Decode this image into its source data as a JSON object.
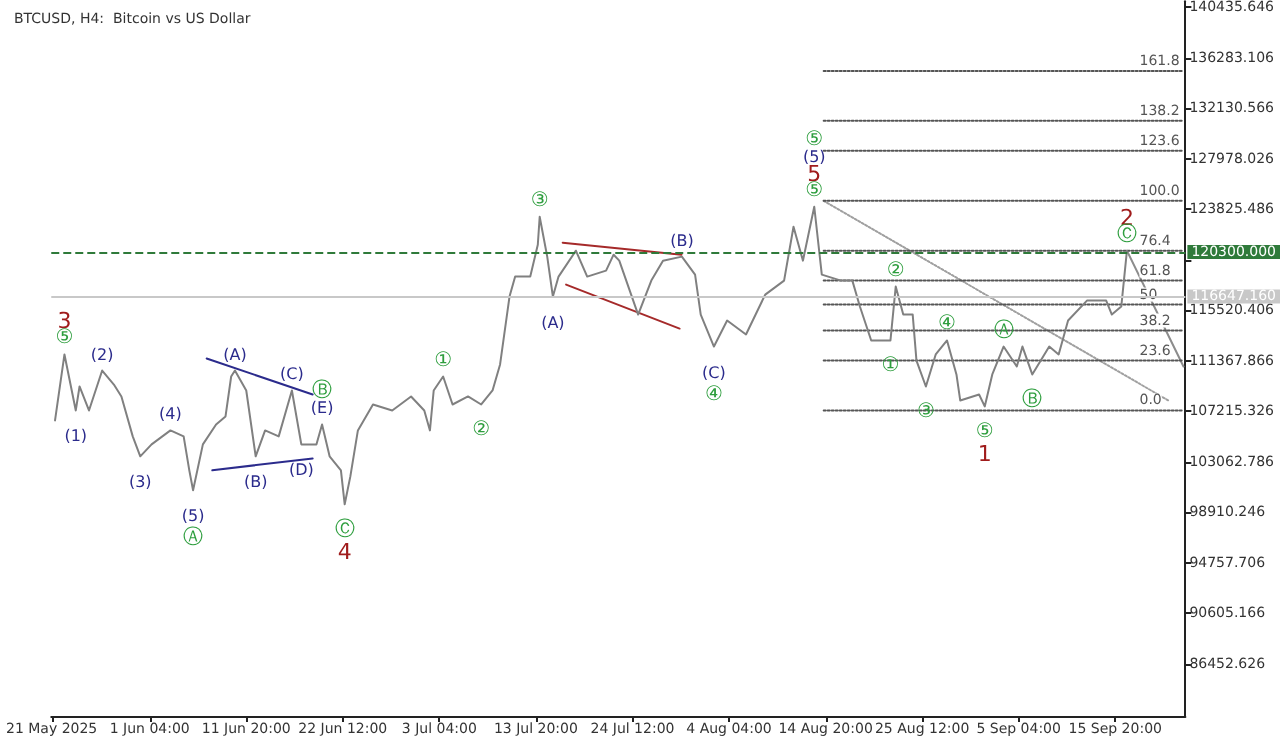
{
  "chart_data": {
    "type": "line",
    "title": "BTCUSD, H4:  Bitcoin vs US Dollar",
    "marker": "none",
    "xlim": [
      "2025-05-21T07:00",
      "2025-09-23T14:00"
    ],
    "xticks": [
      {
        "value": "2025-05-21T08:00",
        "label": "21 May 2025"
      },
      {
        "value": "2025-06-01T04:00",
        "label": "1 Jun 04:00"
      },
      {
        "value": "2025-06-11T20:00",
        "label": "11 Jun 20:00"
      },
      {
        "value": "2025-06-22T12:00",
        "label": "22 Jun 12:00"
      },
      {
        "value": "2025-07-03T04:00",
        "label": "3 Jul 04:00"
      },
      {
        "value": "2025-07-13T20:00",
        "label": "13 Jul 20:00"
      },
      {
        "value": "2025-07-24T12:00",
        "label": "24 Jul 12:00"
      },
      {
        "value": "2025-08-04T04:00",
        "label": "4 Aug 04:00"
      },
      {
        "value": "2025-08-14T20:00",
        "label": "14 Aug 20:00"
      },
      {
        "value": "2025-08-25T12:00",
        "label": "25 Aug 12:00"
      },
      {
        "value": "2025-09-05T04:00",
        "label": "5 Sep 04:00"
      },
      {
        "value": "2025-09-15T20:00",
        "label": "15 Sep 20:00"
      }
    ],
    "ylim": [
      82170,
      140900
    ],
    "yticks": [
      86452.626,
      90605.166,
      94757.706,
      98910.246,
      103062.786,
      107215.326,
      111367.866,
      115520.406,
      {
        "value": 119672.946,
        "label": null
      },
      123825.486,
      127978.026,
      132130.566,
      136283.106,
      140435.646
    ],
    "x": [
      "2025-05-21T17:00",
      "2025-05-22T18:00",
      "2025-05-24T00:00",
      "2025-05-24T10:00",
      "2025-05-25T11:00",
      "2025-05-26T22:00",
      "2025-05-28T05:00",
      "2025-05-29T01:00",
      "2025-05-30T07:00",
      "2025-05-31T03:00",
      "2025-06-01T09:00",
      "2025-06-03T11:00",
      "2025-06-04T22:00",
      "2025-06-05T13:00",
      "2025-06-05T23:00",
      "2025-06-07T01:00",
      "2025-06-08T12:00",
      "2025-06-09T13:00",
      "2025-06-10T04:00",
      "2025-06-10T14:00",
      "2025-06-11T20:00",
      "2025-06-12T21:00",
      "2025-06-13T22:00",
      "2025-06-15T10:00",
      "2025-06-16T21:00",
      "2025-06-17T22:00",
      "2025-06-19T14:00",
      "2025-06-20T05:00",
      "2025-06-21T01:00",
      "2025-06-22T07:00",
      "2025-06-22T17:00",
      "2025-06-23T08:00",
      "2025-06-24T04:00",
      "2025-06-25T20:00",
      "2025-06-27T23:00",
      "2025-06-30T01:00",
      "2025-07-01T12:00",
      "2025-07-02T03:00",
      "2025-07-02T13:00",
      "2025-07-03T14:00",
      "2025-07-04T15:00",
      "2025-07-06T08:00",
      "2025-07-07T19:00",
      "2025-07-09T01:00",
      "2025-07-09T21:00",
      "2025-07-10T22:00",
      "2025-07-11T13:00",
      "2025-07-13T05:00",
      "2025-07-14T01:00",
      "2025-07-14T06:00",
      "2025-07-15T02:00",
      "2025-07-15T17:00",
      "2025-07-16T08:00",
      "2025-07-18T06:00",
      "2025-07-19T12:00",
      "2025-07-21T14:00",
      "2025-07-22T10:00",
      "2025-07-23T01:00",
      "2025-07-25T03:00",
      "2025-07-26T14:00",
      "2025-07-27T21:00",
      "2025-07-29T23:00",
      "2025-07-31T10:00",
      "2025-08-01T01:00",
      "2025-08-02T12:00",
      "2025-08-03T23:00",
      "2025-08-06T01:00",
      "2025-08-08T04:00",
      "2025-08-10T06:00",
      "2025-08-11T07:00",
      "2025-08-12T08:00",
      "2025-08-13T14:00",
      "2025-08-14T10:00",
      "2025-08-16T13:00",
      "2025-08-17T19:00",
      "2025-08-18T15:00",
      "2025-08-19T21:00",
      "2025-08-22T00:00",
      "2025-08-22T14:00",
      "2025-08-23T10:00",
      "2025-08-24T11:00",
      "2025-08-24T21:00",
      "2025-08-25T22:00",
      "2025-08-27T00:00",
      "2025-08-28T06:00",
      "2025-08-29T07:00",
      "2025-08-29T17:00",
      "2025-08-31T19:00",
      "2025-09-01T10:00",
      "2025-09-02T06:00",
      "2025-09-03T12:00",
      "2025-09-04T23:00",
      "2025-09-05T14:00",
      "2025-09-06T16:00",
      "2025-09-08T13:00",
      "2025-09-09T14:00",
      "2025-09-10T15:00",
      "2025-09-12T17:00",
      "2025-09-14T20:00",
      "2025-09-15T11:00",
      "2025-09-16T12:00",
      "2025-09-17T03:00"
    ],
    "series": [
      {
        "color": "#808080",
        "values": [
          106460,
          111880,
          107280,
          109250,
          107280,
          110560,
          109410,
          108430,
          105150,
          103510,
          104490,
          105640,
          105150,
          102360,
          100720,
          104490,
          106130,
          106790,
          110070,
          110560,
          108920,
          103510,
          105640,
          105150,
          108920,
          104490,
          104490,
          106130,
          103510,
          102360,
          99570,
          101860,
          105640,
          107770,
          107280,
          108430,
          107280,
          105640,
          108920,
          110070,
          107770,
          108430,
          107770,
          108920,
          111060,
          116640,
          118280,
          118280,
          120900,
          123200,
          119920,
          116640,
          118280,
          120410,
          118280,
          118770,
          120080,
          119590,
          115160,
          117950,
          119590,
          119920,
          118440,
          115160,
          112530,
          114670,
          113520,
          116800,
          117950,
          122380,
          119590,
          124020,
          118440,
          117950,
          117950,
          115820,
          113030,
          113030,
          117460,
          115160,
          115160,
          111380,
          109250,
          111880,
          113030,
          110240,
          108100,
          108590,
          107610,
          110240,
          112530,
          110890,
          112530,
          110240,
          112530,
          111880,
          114670,
          116310,
          116310,
          115160,
          115820,
          120410
        ]
      },
      {
        "color": "#2b2b8c",
        "x": [
          "2025-06-07T11:00",
          "2025-06-19T04:00"
        ],
        "values": [
          111550,
          108590
        ]
      },
      {
        "color": "#2b2b8c",
        "x": [
          "2025-06-08T02:00",
          "2025-06-19T04:00"
        ],
        "values": [
          102360,
          103340
        ]
      },
      {
        "color": "#a52a2a",
        "x": [
          "2025-07-16T19:00",
          "2025-07-29T22:00"
        ],
        "values": [
          121070,
          120080
        ]
      },
      {
        "color": "#a52a2a",
        "x": [
          "2025-07-17T04:00",
          "2025-07-29T17:00"
        ],
        "values": [
          117620,
          114010
        ]
      },
      {
        "color": "#a0a0a0",
        "line_style": "dotted",
        "x": [
          "2025-08-14T15:00",
          "2025-09-21T17:00"
        ],
        "values": [
          124510,
          108100
        ]
      },
      {
        "color": "#8c8c8c",
        "x": [
          "2025-09-17T03:00",
          "2025-09-23T09:00"
        ],
        "values": [
          120410,
          110890
        ]
      },
      {
        "name": "161.8",
        "color": "#555555",
        "line_style": "dotted",
        "x": [
          "2025-08-14T15:00",
          "2025-09-23T09:00"
        ],
        "values": [
          135180,
          135180
        ]
      },
      {
        "name": "138.2",
        "color": "#555555",
        "line_style": "dotted",
        "x": [
          "2025-08-14T15:00",
          "2025-09-23T09:00"
        ],
        "values": [
          131080,
          131080
        ]
      },
      {
        "name": "123.6",
        "color": "#555555",
        "line_style": "dotted",
        "x": [
          "2025-08-14T15:00",
          "2025-09-23T09:00"
        ],
        "values": [
          128620,
          128620
        ]
      },
      {
        "name": "100.0",
        "color": "#555555",
        "line_style": "dotted",
        "x": [
          "2025-08-14T15:00",
          "2025-09-23T09:00"
        ],
        "values": [
          124520,
          124520
        ]
      },
      {
        "name": "76.4",
        "color": "#555555",
        "line_style": "dotted",
        "x": [
          "2025-08-14T15:00",
          "2025-09-23T09:00"
        ],
        "values": [
          120410,
          120410
        ]
      },
      {
        "name": "61.8",
        "color": "#555555",
        "line_style": "dotted",
        "x": [
          "2025-08-14T15:00",
          "2025-09-23T09:00"
        ],
        "values": [
          117950,
          117950
        ]
      },
      {
        "name": "50",
        "color": "#555555",
        "line_style": "dotted",
        "x": [
          "2025-08-14T15:00",
          "2025-09-23T09:00"
        ],
        "values": [
          115980,
          115980
        ]
      },
      {
        "name": "38.2",
        "color": "#555555",
        "line_style": "dotted",
        "x": [
          "2025-08-14T15:00",
          "2025-09-23T09:00"
        ],
        "values": [
          113850,
          113850
        ]
      },
      {
        "name": "23.6",
        "color": "#555555",
        "line_style": "dotted",
        "x": [
          "2025-08-14T15:00",
          "2025-09-23T09:00"
        ],
        "values": [
          111380,
          111380
        ]
      },
      {
        "name": "0.0",
        "color": "#555555",
        "line_style": "dotted",
        "x": [
          "2025-08-14T15:00",
          "2025-09-23T09:00"
        ],
        "values": [
          107280,
          107280
        ]
      }
    ],
    "ref_lines": [
      {
        "axis": "y",
        "value": 120300,
        "label": "120300.000",
        "color": "#2f7a3a",
        "line_style": "dashed"
      },
      {
        "axis": "y",
        "value": 116647.16,
        "label": "116647.160",
        "color": "#c8c8c8",
        "line_style": "solid"
      }
    ],
    "annotations": [
      {
        "text": "3",
        "x": "2025-05-22T18:00",
        "y": 111880
      },
      {
        "text": "⑤",
        "x": "2025-05-22T18:00",
        "y": 111880
      },
      {
        "text": "(1)",
        "x": "2025-05-24T00:00",
        "y": 107280
      },
      {
        "text": "(2)",
        "x": "2025-05-26T22:00",
        "y": 110560
      },
      {
        "text": "(3)",
        "x": "2025-05-31T03:00",
        "y": 103510
      },
      {
        "text": "(4)",
        "x": "2025-06-03T11:00",
        "y": 105640
      },
      {
        "text": "(5)",
        "x": "2025-06-05T23:00",
        "y": 100720
      },
      {
        "text": "Ⓐ",
        "x": "2025-06-05T23:00",
        "y": 100720
      },
      {
        "text": "(A)",
        "x": "2025-06-10T14:00",
        "y": 110560
      },
      {
        "text": "(B)",
        "x": "2025-06-12T21:00",
        "y": 103510
      },
      {
        "text": "(C)",
        "x": "2025-06-16T21:00",
        "y": 108920
      },
      {
        "text": "Ⓑ",
        "x": "2025-06-20T05:00",
        "y": 106130
      },
      {
        "text": "(E)",
        "x": "2025-06-20T05:00",
        "y": 106130
      },
      {
        "text": "(D)",
        "x": "2025-06-17T22:00",
        "y": 104490
      },
      {
        "text": "Ⓒ",
        "x": "2025-06-22T17:00",
        "y": 99570
      },
      {
        "text": "4",
        "x": "2025-06-22T17:00",
        "y": 99570
      },
      {
        "text": "①",
        "x": "2025-07-03T14:00",
        "y": 110070
      },
      {
        "text": "②",
        "x": "2025-07-07T19:00",
        "y": 107770
      },
      {
        "text": "③",
        "x": "2025-07-14T06:00",
        "y": 123200
      },
      {
        "text": "(A)",
        "x": "2025-07-15T17:00",
        "y": 116640
      },
      {
        "text": "(B)",
        "x": "2025-07-29T23:00",
        "y": 119920
      },
      {
        "text": "(C)",
        "x": "2025-08-02T12:00",
        "y": 112530
      },
      {
        "text": "④",
        "x": "2025-08-02T12:00",
        "y": 112530
      },
      {
        "text": "⑤",
        "x": "2025-08-13T14:00",
        "y": 124020
      },
      {
        "text": "(5)",
        "x": "2025-08-13T14:00",
        "y": 124020
      },
      {
        "text": "5",
        "x": "2025-08-13T14:00",
        "y": 124020
      },
      {
        "text": "⑤",
        "x": "2025-08-13T14:00",
        "y": 124020
      },
      {
        "text": "②",
        "x": "2025-08-22T14:00",
        "y": 117460
      },
      {
        "text": "①",
        "x": "2025-08-22T00:00",
        "y": 113030
      },
      {
        "text": "④",
        "x": "2025-08-28T06:00",
        "y": 113030
      },
      {
        "text": "Ⓐ",
        "x": "2025-09-03T12:00",
        "y": 112530
      },
      {
        "text": "③",
        "x": "2025-08-25T22:00",
        "y": 109250
      },
      {
        "text": "Ⓑ",
        "x": "2025-09-06T16:00",
        "y": 110240
      },
      {
        "text": "⑤",
        "x": "2025-09-01T10:00",
        "y": 107610
      },
      {
        "text": "1",
        "x": "2025-09-01T10:00",
        "y": 107610
      },
      {
        "text": "2",
        "x": "2025-09-17T03:00",
        "y": 120410
      },
      {
        "text": "Ⓒ",
        "x": "2025-09-17T03:00",
        "y": 120410
      }
    ]
  }
}
